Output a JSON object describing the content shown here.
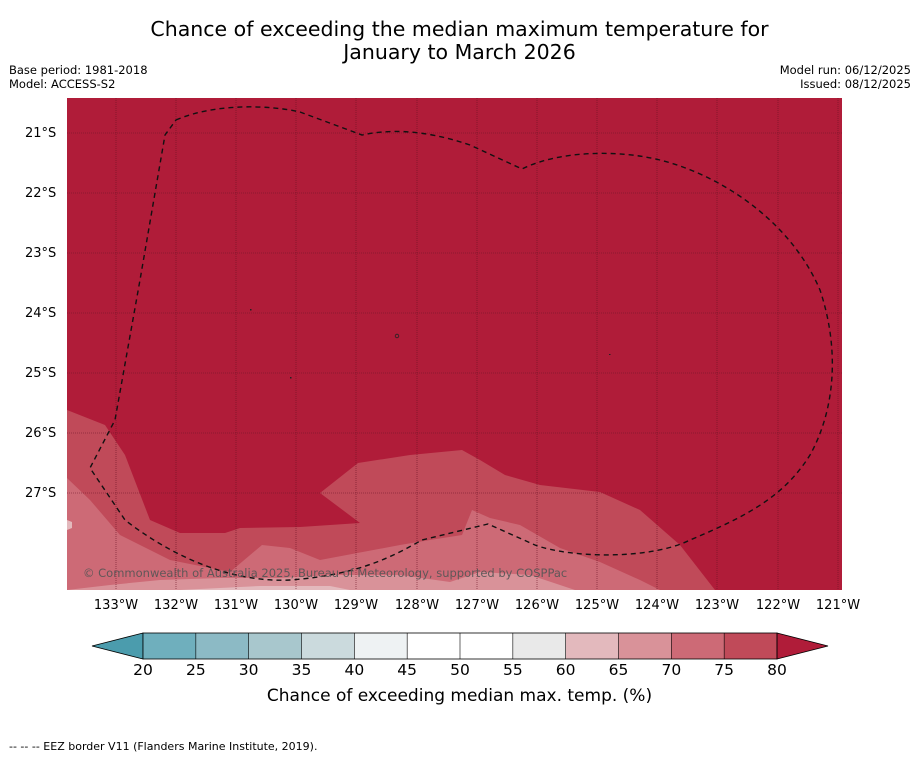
{
  "title": {
    "line1": "Chance of exceeding the median maximum temperature for",
    "line2": "January to March 2026"
  },
  "meta": {
    "base_period": "Base period: 1981-2018",
    "model": "Model: ACCESS-S2",
    "model_run": "Model run: 06/12/2025",
    "issued": "Issued: 08/12/2025"
  },
  "map": {
    "lat_labels": [
      "21°S",
      "22°S",
      "23°S",
      "24°S",
      "25°S",
      "26°S",
      "27°S"
    ],
    "lon_labels": [
      "133°W",
      "132°W",
      "131°W",
      "130°W",
      "129°W",
      "128°W",
      "127°W",
      "126°W",
      "125°W",
      "124°W",
      "123°W",
      "122°W",
      "121°W"
    ],
    "copyright": "© Commonwealth of Australia 2025, Bureau of Meteorology, supported by COSPPac",
    "colors": {
      "c80plus": "#b01c39",
      "c75_80": "#c04a59",
      "c70_75": "#cd6a76",
      "c65_70": "#d99299",
      "c60_65": "#e3b9bd",
      "c55_60": "#e9e9e9",
      "c50_55": "#ffffff",
      "c45_50": "#ffffff",
      "c40_45": "#eef2f3",
      "c35_40": "#cbdadd",
      "c30_35": "#a8c7cd",
      "c25_30": "#8cbac5",
      "c20_25": "#6fafbd",
      "below20": "#4b9cad"
    }
  },
  "colorbar": {
    "ticks": [
      "20",
      "25",
      "30",
      "35",
      "40",
      "45",
      "50",
      "55",
      "60",
      "65",
      "70",
      "75",
      "80"
    ],
    "title": "Chance of exceeding median max. temp. (%)"
  },
  "footer": "-- -- -- EEZ border V11 (Flanders Marine Institute, 2019)."
}
